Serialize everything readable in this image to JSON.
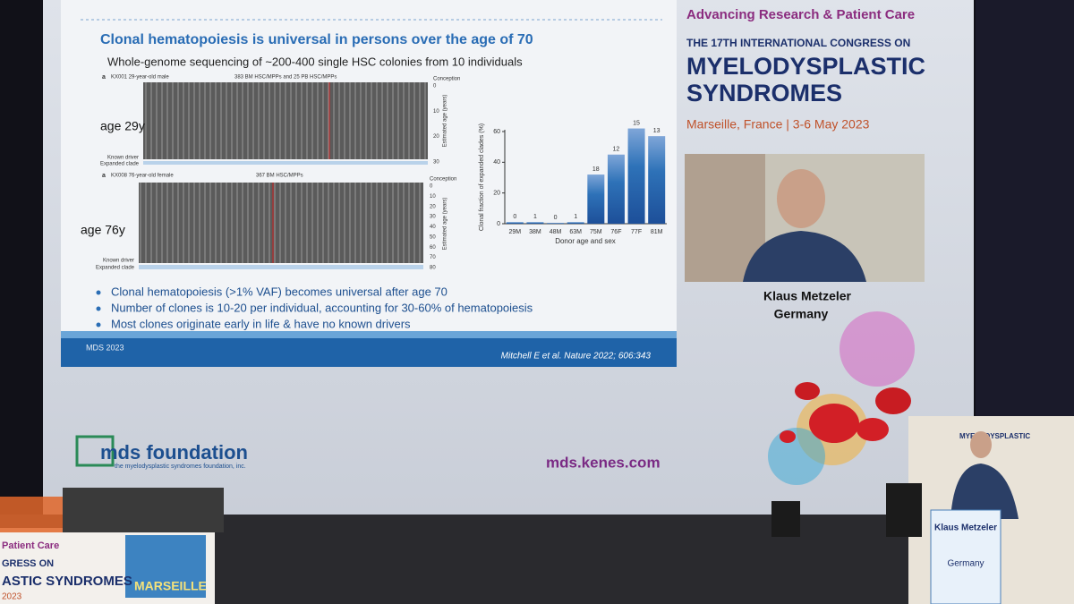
{
  "slide": {
    "title": "Clonal hematopoiesis is universal in persons over the age of 70",
    "subtitle": "Whole-genome sequencing of ~200-400 single HSC colonies from 10 individuals",
    "tree_top": {
      "panel": "a",
      "donor": "KX001 29-year-old male",
      "cells": "383 BM HSC/MPPs and 25 PB HSC/MPPs",
      "age_label": "age 29y",
      "ticks": [
        0,
        10,
        20,
        30
      ]
    },
    "tree_bottom": {
      "panel": "a",
      "donor": "KX008 76-year-old female",
      "cells": "367 BM HSC/MPPs",
      "age_label": "age 76y",
      "ticks": [
        0,
        10,
        20,
        30,
        40,
        50,
        60,
        70,
        80
      ]
    },
    "tree_labels": {
      "conception": "Conception",
      "known_driver": "Known driver",
      "expanded_clade": "Expanded clade",
      "axis": "Estimated age (years)"
    },
    "chart": {
      "y_label": "Clonal fraction of expanded clades (%)",
      "x_label": "Donor age and sex",
      "categories": [
        "29M",
        "38M",
        "48M",
        "63M",
        "75M",
        "76F",
        "77F",
        "81M"
      ],
      "values": [
        1,
        1,
        0.5,
        1,
        32,
        45,
        62,
        57
      ],
      "clone_counts": [
        0,
        1,
        0,
        1,
        18,
        12,
        15,
        13
      ],
      "ylim": [
        0,
        60
      ],
      "yticks": [
        0,
        20,
        40,
        60
      ]
    },
    "bullets": [
      "Clonal hematopoiesis (>1% VAF) becomes universal after age 70",
      "Number of clones is 10-20 per individual, accounting for 30-60% of hematopoiesis",
      "Most clones originate early in life & have no known drivers"
    ],
    "footer_left": "MDS 2023",
    "footer_right": "Mitchell E et al. Nature 2022; 606:343"
  },
  "congress": {
    "tagline": "Advancing Research & Patient Care",
    "line1": "THE 17TH INTERNATIONAL CONGRESS ON",
    "line2": "MYELODYSPLASTIC",
    "line3": "SYNDROMES",
    "place": "Marseille, France | 3-6 May 2023",
    "speaker": "Klaus Metzeler",
    "country": "Germany",
    "logo": "mds foundation",
    "logo_sub": "the myelodysplastic syndromes foundation, inc.",
    "url": "mds.kenes.com"
  },
  "stage": {
    "banner_1": "Patient Care",
    "banner_2": "GRESS ON",
    "banner_3": "ASTIC SYNDROMES",
    "banner_4": "2023",
    "banner_city": "MARSEILLE",
    "podium_name": "Klaus Metzeler",
    "podium_country": "Germany"
  }
}
